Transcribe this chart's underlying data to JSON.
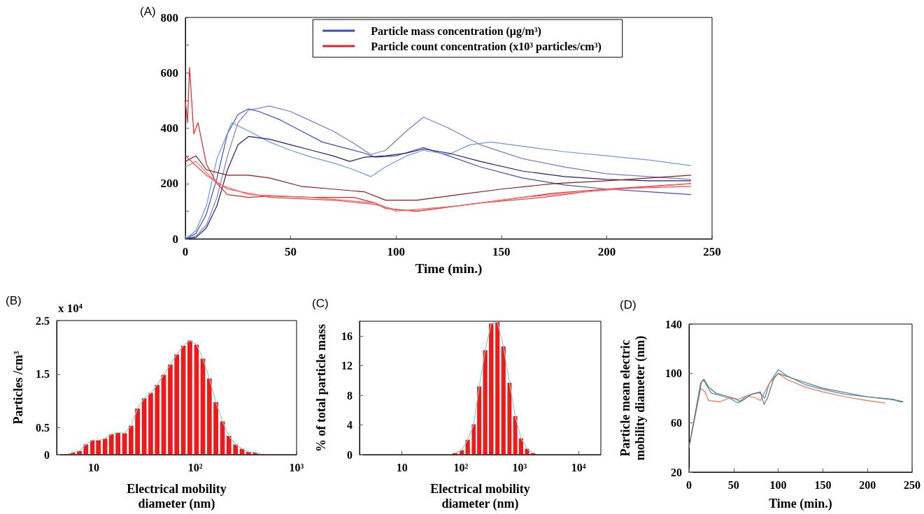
{
  "chart_data": [
    {
      "type": "line",
      "title": "(A)",
      "xlabel": "Time (min.)",
      "xlim": [
        0,
        250
      ],
      "xticks": [
        0,
        50,
        100,
        150,
        200,
        250
      ],
      "ylim": [
        0,
        800
      ],
      "yticks": [
        0,
        {
          "value": 100,
          "label": null
        },
        200,
        {
          "value": 300,
          "label": null
        },
        400,
        {
          "value": 500,
          "label": null
        },
        600,
        {
          "value": 700,
          "label": null
        },
        800
      ],
      "legend": "top",
      "grid": false,
      "series": [
        {
          "name": "Particle mass concentration (μg/m³)",
          "color": "#3a4fb0",
          "x": [
            0,
            5,
            10,
            15,
            20,
            25,
            30,
            35,
            45,
            55,
            65,
            75,
            85,
            90,
            100,
            113,
            125,
            140,
            160,
            180,
            200,
            220,
            240
          ],
          "values": [
            0,
            20,
            90,
            220,
            380,
            450,
            470,
            460,
            430,
            390,
            350,
            330,
            310,
            295,
            300,
            330,
            300,
            260,
            220,
            195,
            180,
            170,
            160
          ]
        },
        {
          "color": "#7a78d0",
          "x": [
            0,
            5,
            10,
            15,
            20,
            25,
            30,
            40,
            50,
            60,
            70,
            80,
            88,
            95,
            105,
            113,
            125,
            140,
            160,
            180,
            200,
            220,
            240
          ],
          "values": [
            0,
            10,
            50,
            150,
            300,
            420,
            465,
            480,
            460,
            425,
            390,
            345,
            305,
            320,
            390,
            440,
            400,
            340,
            290,
            260,
            235,
            225,
            215
          ]
        },
        {
          "color": "#6c98e0",
          "x": [
            0,
            5,
            10,
            15,
            22,
            30,
            40,
            50,
            60,
            70,
            80,
            88,
            95,
            105,
            113,
            125,
            135,
            145,
            160,
            180,
            200,
            220,
            240
          ],
          "values": [
            0,
            30,
            120,
            290,
            420,
            390,
            350,
            320,
            295,
            275,
            250,
            225,
            260,
            300,
            320,
            305,
            340,
            350,
            335,
            315,
            300,
            285,
            265
          ]
        },
        {
          "color": "#1e2070",
          "x": [
            0,
            5,
            10,
            15,
            20,
            25,
            30,
            40,
            50,
            60,
            70,
            78,
            85,
            95,
            105,
            113,
            125,
            140,
            160,
            180,
            200,
            220,
            240
          ],
          "values": [
            0,
            5,
            40,
            120,
            250,
            340,
            370,
            360,
            340,
            320,
            300,
            280,
            295,
            300,
            310,
            325,
            310,
            280,
            245,
            225,
            215,
            210,
            210
          ]
        },
        {
          "name": "Particle count concentration (x10³ particles/cm³)",
          "color": "#e02424",
          "x": [
            0,
            1,
            2,
            4,
            6,
            10,
            15,
            20,
            30,
            40,
            60,
            80,
            90,
            95,
            110,
            125,
            150,
            175,
            200,
            220,
            240
          ],
          "values": [
            500,
            420,
            620,
            380,
            420,
            270,
            200,
            160,
            150,
            155,
            150,
            150,
            130,
            110,
            100,
            115,
            140,
            165,
            180,
            190,
            200
          ]
        },
        {
          "color": "#8a1a1a",
          "x": [
            0,
            5,
            10,
            20,
            30,
            40,
            55,
            70,
            85,
            95,
            110,
            130,
            150,
            175,
            200,
            220,
            240
          ],
          "values": [
            280,
            300,
            250,
            230,
            230,
            220,
            190,
            180,
            170,
            140,
            140,
            160,
            180,
            200,
            210,
            220,
            230
          ]
        },
        {
          "color": "#f04848",
          "x": [
            0,
            10,
            20,
            40,
            70,
            90,
            100,
            110,
            140,
            170,
            200,
            240
          ],
          "values": [
            300,
            230,
            180,
            150,
            140,
            125,
            105,
            100,
            130,
            150,
            180,
            190
          ]
        },
        {
          "color": "#ff6a6a",
          "x": [
            0,
            5,
            15,
            30,
            60,
            90,
            100,
            130,
            160,
            190,
            240
          ],
          "values": [
            260,
            280,
            200,
            160,
            150,
            130,
            100,
            120,
            150,
            170,
            200
          ]
        }
      ]
    },
    {
      "type": "bar",
      "title": "(B)",
      "xlabel": "Electrical mobility diameter (nm)",
      "ylabel": "Particles /cm³",
      "annotations": [
        "x 10⁴"
      ],
      "log": "x",
      "xlim": [
        4.3,
        1000
      ],
      "xticks": [
        10,
        {
          "value": 100,
          "label": "10²"
        },
        {
          "value": 1000,
          "label": "10³"
        }
      ],
      "ylim": [
        0,
        2.5
      ],
      "yticks": [
        0,
        0.5,
        1.5,
        2.5
      ],
      "series": [
        {
          "color": "#f01818",
          "x": [
            5.38,
            6.21,
            7.2,
            8.35,
            9.69,
            11.1,
            12.9,
            14.9,
            17.3,
            20.1,
            23.3,
            27.0,
            31.4,
            36.4,
            42.2,
            48.9,
            56.8,
            65.8,
            76.4,
            88.5,
            103,
            119,
            138,
            160,
            186,
            215,
            250,
            290,
            336,
            390,
            452
          ],
          "values": [
            0.01,
            0.04,
            0.07,
            0.19,
            0.27,
            0.27,
            0.3,
            0.38,
            0.41,
            0.4,
            0.54,
            0.86,
            1.05,
            1.15,
            1.3,
            1.49,
            1.68,
            1.87,
            2.03,
            2.13,
            2.05,
            1.79,
            1.42,
            0.98,
            0.62,
            0.35,
            0.19,
            0.11,
            0.05,
            0.04,
            0.01
          ]
        },
        {
          "type": "line",
          "color": "#7fd3d3",
          "x": [
            5.38,
            6.21,
            7.2,
            8.35,
            9.69,
            11.1,
            12.9,
            14.9,
            17.3,
            20.1,
            23.3,
            27.0,
            31.4,
            36.4,
            42.2,
            48.9,
            56.8,
            65.8,
            76.4,
            88.5,
            103,
            119,
            138,
            160,
            186,
            215,
            250,
            290,
            336,
            390,
            452
          ],
          "values": [
            0.01,
            0.04,
            0.07,
            0.19,
            0.27,
            0.27,
            0.3,
            0.38,
            0.41,
            0.4,
            0.54,
            0.86,
            1.05,
            1.15,
            1.3,
            1.49,
            1.68,
            1.87,
            2.03,
            2.13,
            2.05,
            1.79,
            1.42,
            0.98,
            0.62,
            0.35,
            0.19,
            0.11,
            0.05,
            0.04,
            0.01
          ]
        }
      ]
    },
    {
      "type": "bar",
      "title": "(C)",
      "xlabel": "Electrical mobility diameter (nm)",
      "ylabel": "% of total particle mass",
      "log": "x",
      "xlim": [
        1.9,
        24000
      ],
      "xticks": [
        10,
        {
          "value": 100,
          "label": "10²"
        },
        {
          "value": 1000,
          "label": "10³"
        },
        {
          "value": 10000,
          "label": "10⁴"
        }
      ],
      "ylim": [
        0,
        18
      ],
      "yticks": [
        0,
        4,
        8,
        12,
        16
      ],
      "series": [
        {
          "color": "#f01818",
          "x": [
            79.8,
            104,
            131,
            166,
            206,
            260,
            329,
            420,
            531,
            672,
            842,
            1056,
            1335,
            1689
          ],
          "values": [
            0.2,
            0.6,
            2.0,
            4.1,
            9.2,
            14.1,
            17.7,
            17.9,
            14.6,
            9.7,
            5.2,
            2.2,
            0.8,
            0.2
          ]
        },
        {
          "type": "line",
          "color": "#7fd3d3",
          "x": [
            79.8,
            104,
            131,
            166,
            206,
            260,
            329,
            420,
            531,
            672,
            842,
            1056,
            1335,
            1689
          ],
          "values": [
            0.2,
            0.6,
            2.0,
            4.1,
            9.2,
            14.1,
            17.7,
            17.9,
            14.6,
            9.7,
            5.2,
            2.2,
            0.8,
            0.2
          ]
        }
      ]
    },
    {
      "type": "line",
      "title": "(D)",
      "xlabel": "Time (min.)",
      "ylabel": "Particle mean electric mobility diameter (nm)",
      "xlim": [
        0,
        250
      ],
      "xticks": [
        0,
        50,
        100,
        150,
        200,
        250
      ],
      "ylim": [
        20,
        140
      ],
      "yticks": [
        20,
        60,
        100,
        140
      ],
      "series": [
        {
          "color": "#3c8fc8",
          "x": [
            0,
            13,
            16,
            20,
            25,
            35,
            45,
            55,
            65,
            75,
            80,
            85,
            90,
            100,
            110,
            130,
            150,
            175,
            200,
            230,
            235,
            240
          ],
          "values": [
            40,
            92,
            95,
            90,
            84,
            82,
            80,
            76,
            82,
            84,
            84,
            80,
            92,
            103,
            98,
            91,
            87,
            83,
            81,
            79,
            77,
            77
          ]
        },
        {
          "color": "#f07050",
          "x": [
            0,
            13,
            18,
            22,
            35,
            45,
            55,
            65,
            75,
            80,
            90,
            100,
            110,
            130,
            150,
            175,
            200,
            220
          ],
          "values": [
            40,
            88,
            85,
            78,
            77,
            80,
            79,
            82,
            80,
            78,
            92,
            100,
            95,
            89,
            85,
            81,
            78,
            76
          ]
        },
        {
          "color": "#6a7068",
          "x": [
            0,
            14,
            17,
            22,
            30,
            40,
            50,
            58,
            70,
            80,
            84,
            88,
            95,
            100,
            120,
            150,
            200,
            235,
            240
          ],
          "values": [
            40,
            93,
            95,
            89,
            84,
            82,
            80,
            77,
            83,
            85,
            75,
            80,
            96,
            100,
            95,
            88,
            81,
            78,
            77
          ]
        }
      ]
    }
  ]
}
